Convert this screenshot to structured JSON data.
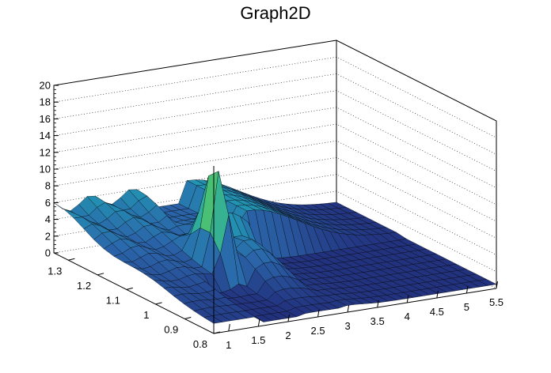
{
  "chart_data": {
    "type": "surface",
    "title": "Graph2D",
    "xlabel": "",
    "ylabel": "",
    "zlabel": "",
    "xlim": [
      0.75,
      5.5
    ],
    "ylim": [
      0.8,
      1.35
    ],
    "zlim": [
      0,
      20
    ],
    "x_ticks": [
      "1",
      "1.5",
      "2",
      "2.5",
      "3",
      "3.5",
      "4",
      "4.5",
      "5",
      "5.5"
    ],
    "y_ticks": [
      "0.8",
      "0.9",
      "1",
      "1.1",
      "1.2",
      "1.3"
    ],
    "z_ticks": [
      "0",
      "2",
      "4",
      "6",
      "8",
      "10",
      "12",
      "14",
      "16",
      "18",
      "20"
    ],
    "grid": true,
    "colormap": "viridis-like (dark blue → teal → green → yellow)",
    "features": [
      {
        "description": "sharp peak",
        "x": 2.0,
        "y": 1.05,
        "z": 15.2
      },
      {
        "description": "plateau ridge",
        "x_range": [
          0.9,
          2.1
        ],
        "y": 1.15,
        "z": 5.5
      },
      {
        "description": "flat region near zero",
        "x_range": [
          2.6,
          5.5
        ],
        "z": 0.5
      }
    ]
  }
}
